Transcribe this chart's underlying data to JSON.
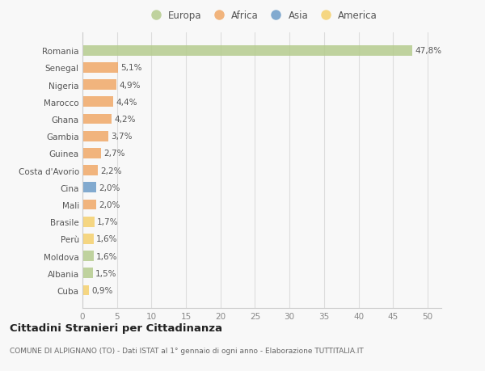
{
  "countries": [
    "Romania",
    "Senegal",
    "Nigeria",
    "Marocco",
    "Ghana",
    "Gambia",
    "Guinea",
    "Costa d'Avorio",
    "Cina",
    "Mali",
    "Brasile",
    "Perù",
    "Moldova",
    "Albania",
    "Cuba"
  ],
  "values": [
    47.8,
    5.1,
    4.9,
    4.4,
    4.2,
    3.7,
    2.7,
    2.2,
    2.0,
    2.0,
    1.7,
    1.6,
    1.6,
    1.5,
    0.9
  ],
  "labels": [
    "47,8%",
    "5,1%",
    "4,9%",
    "4,4%",
    "4,2%",
    "3,7%",
    "2,7%",
    "2,2%",
    "2,0%",
    "2,0%",
    "1,7%",
    "1,6%",
    "1,6%",
    "1,5%",
    "0,9%"
  ],
  "colors": [
    "#b5cc8e",
    "#f0a868",
    "#f0a868",
    "#f0a868",
    "#f0a868",
    "#f0a868",
    "#f0a868",
    "#f0a868",
    "#6e9dc8",
    "#f0a868",
    "#f5d06e",
    "#f5d06e",
    "#b5cc8e",
    "#b5cc8e",
    "#f5d06e"
  ],
  "legend_labels": [
    "Europa",
    "Africa",
    "Asia",
    "America"
  ],
  "legend_colors": [
    "#b5cc8e",
    "#f0a868",
    "#6e9dc8",
    "#f5d06e"
  ],
  "title": "Cittadini Stranieri per Cittadinanza",
  "subtitle": "COMUNE DI ALPIGNANO (TO) - Dati ISTAT al 1° gennaio di ogni anno - Elaborazione TUTTITALIA.IT",
  "xlim": [
    0,
    52
  ],
  "xticks": [
    0,
    5,
    10,
    15,
    20,
    25,
    30,
    35,
    40,
    45,
    50
  ],
  "background_color": "#f8f8f8",
  "plot_bg_color": "#f8f8f8",
  "grid_color": "#dddddd",
  "bar_height": 0.6,
  "label_fontsize": 7.5,
  "ytick_fontsize": 7.5,
  "xtick_fontsize": 7.5,
  "title_fontsize": 9.5,
  "subtitle_fontsize": 6.5,
  "legend_fontsize": 8.5
}
